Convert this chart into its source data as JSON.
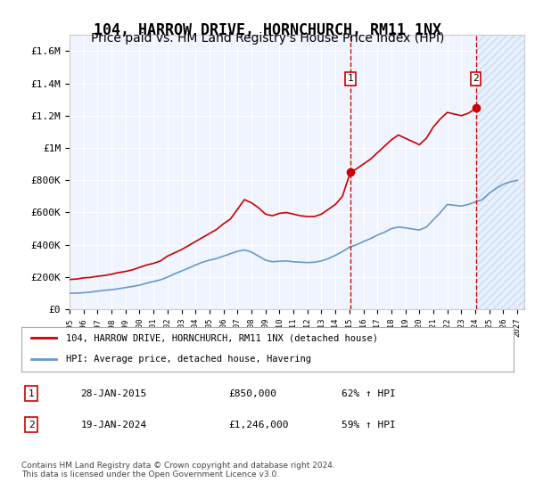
{
  "title": "104, HARROW DRIVE, HORNCHURCH, RM11 1NX",
  "subtitle": "Price paid vs. HM Land Registry's House Price Index (HPI)",
  "title_fontsize": 12,
  "subtitle_fontsize": 10,
  "ylabel": "",
  "xlabel": "",
  "ylim": [
    0,
    1700000
  ],
  "xlim_start": 1995.0,
  "xlim_end": 2027.5,
  "yticks": [
    0,
    200000,
    400000,
    600000,
    800000,
    1000000,
    1200000,
    1400000,
    1600000
  ],
  "ytick_labels": [
    "£0",
    "£200K",
    "£400K",
    "£600K",
    "£800K",
    "£1M",
    "£1.2M",
    "£1.4M",
    "£1.6M"
  ],
  "xticks": [
    1995,
    1996,
    1997,
    1998,
    1999,
    2000,
    2001,
    2002,
    2003,
    2004,
    2005,
    2006,
    2007,
    2008,
    2009,
    2010,
    2011,
    2012,
    2013,
    2014,
    2015,
    2016,
    2017,
    2018,
    2019,
    2020,
    2021,
    2022,
    2023,
    2024,
    2025,
    2026,
    2027
  ],
  "background_color": "#ffffff",
  "plot_bg_color": "#f0f4ff",
  "grid_color": "#ffffff",
  "red_line_color": "#cc0000",
  "blue_line_color": "#6699cc",
  "hatch_color": "#ccddff",
  "sale1_year": 2015.07,
  "sale1_price": 850000,
  "sale2_year": 2024.05,
  "sale2_price": 1246000,
  "future_start": 2024.05,
  "legend_label_red": "104, HARROW DRIVE, HORNCHURCH, RM11 1NX (detached house)",
  "legend_label_blue": "HPI: Average price, detached house, Havering",
  "annotation1_num": "1",
  "annotation1_date": "28-JAN-2015",
  "annotation1_price": "£850,000",
  "annotation1_hpi": "62% ↑ HPI",
  "annotation2_num": "2",
  "annotation2_date": "19-JAN-2024",
  "annotation2_price": "£1,246,000",
  "annotation2_hpi": "59% ↑ HPI",
  "footer": "Contains HM Land Registry data © Crown copyright and database right 2024.\nThis data is licensed under the Open Government Licence v3.0.",
  "red_x": [
    1995.0,
    1995.5,
    1996.0,
    1996.5,
    1997.0,
    1997.5,
    1998.0,
    1998.5,
    1999.0,
    1999.5,
    2000.0,
    2000.5,
    2001.0,
    2001.5,
    2002.0,
    2002.5,
    2003.0,
    2003.5,
    2004.0,
    2004.5,
    2005.0,
    2005.5,
    2006.0,
    2006.5,
    2007.0,
    2007.5,
    2008.0,
    2008.5,
    2009.0,
    2009.5,
    2010.0,
    2010.5,
    2011.0,
    2011.5,
    2012.0,
    2012.5,
    2013.0,
    2013.5,
    2014.0,
    2014.5,
    2015.07,
    2015.5,
    2016.0,
    2016.5,
    2017.0,
    2017.5,
    2018.0,
    2018.5,
    2019.0,
    2019.5,
    2020.0,
    2020.5,
    2021.0,
    2021.5,
    2022.0,
    2022.5,
    2023.0,
    2023.5,
    2024.05
  ],
  "red_y": [
    185000,
    188000,
    195000,
    198000,
    205000,
    210000,
    218000,
    228000,
    235000,
    245000,
    260000,
    275000,
    285000,
    300000,
    330000,
    350000,
    370000,
    395000,
    420000,
    445000,
    470000,
    495000,
    530000,
    560000,
    620000,
    680000,
    660000,
    630000,
    590000,
    580000,
    595000,
    600000,
    590000,
    580000,
    575000,
    575000,
    590000,
    620000,
    650000,
    700000,
    850000,
    870000,
    900000,
    930000,
    970000,
    1010000,
    1050000,
    1080000,
    1060000,
    1040000,
    1020000,
    1060000,
    1130000,
    1180000,
    1220000,
    1210000,
    1200000,
    1215000,
    1246000
  ],
  "blue_x": [
    1995.0,
    1995.5,
    1996.0,
    1996.5,
    1997.0,
    1997.5,
    1998.0,
    1998.5,
    1999.0,
    1999.5,
    2000.0,
    2000.5,
    2001.0,
    2001.5,
    2002.0,
    2002.5,
    2003.0,
    2003.5,
    2004.0,
    2004.5,
    2005.0,
    2005.5,
    2006.0,
    2006.5,
    2007.0,
    2007.5,
    2008.0,
    2008.5,
    2009.0,
    2009.5,
    2010.0,
    2010.5,
    2011.0,
    2011.5,
    2012.0,
    2012.5,
    2013.0,
    2013.5,
    2014.0,
    2014.5,
    2015.0,
    2015.5,
    2016.0,
    2016.5,
    2017.0,
    2017.5,
    2018.0,
    2018.5,
    2019.0,
    2019.5,
    2020.0,
    2020.5,
    2021.0,
    2021.5,
    2022.0,
    2022.5,
    2023.0,
    2023.5,
    2024.0,
    2024.5,
    2025.0,
    2025.5,
    2026.0,
    2026.5,
    2027.0
  ],
  "blue_y": [
    100000,
    100500,
    103000,
    107000,
    113000,
    118000,
    122000,
    128000,
    135000,
    142000,
    150000,
    162000,
    173000,
    183000,
    200000,
    220000,
    238000,
    255000,
    275000,
    292000,
    305000,
    315000,
    330000,
    345000,
    360000,
    368000,
    355000,
    330000,
    305000,
    295000,
    298000,
    300000,
    295000,
    292000,
    290000,
    292000,
    300000,
    315000,
    335000,
    358000,
    385000,
    400000,
    420000,
    438000,
    460000,
    478000,
    500000,
    510000,
    505000,
    498000,
    492000,
    510000,
    555000,
    600000,
    650000,
    645000,
    640000,
    650000,
    665000,
    680000,
    720000,
    750000,
    775000,
    790000,
    800000
  ]
}
